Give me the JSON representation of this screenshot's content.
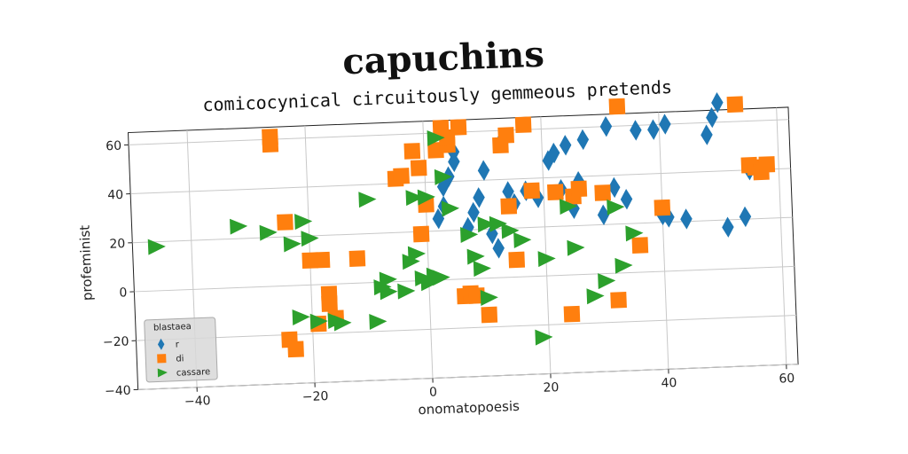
{
  "page": {
    "title": "capuchins"
  },
  "chart_data": {
    "type": "scatter",
    "title": "comicocynical circuitously gemmeous pretends",
    "xlabel": "onomatopoesis",
    "ylabel": "profeminist",
    "xlim": [
      -50,
      62
    ],
    "ylim": [
      -40,
      65
    ],
    "xticks": [
      -40,
      -20,
      0,
      20,
      40,
      60
    ],
    "yticks": [
      -40,
      -20,
      0,
      20,
      40,
      60
    ],
    "grid": true,
    "legend": {
      "title": "blastaea",
      "position": "lower-left"
    },
    "series": [
      {
        "name": "r",
        "marker": "diamond",
        "color": "#1f77b4",
        "points": [
          [
            2,
            25
          ],
          [
            3,
            30
          ],
          [
            3,
            38
          ],
          [
            4,
            42
          ],
          [
            5,
            48
          ],
          [
            5,
            52
          ],
          [
            7,
            21
          ],
          [
            8,
            27
          ],
          [
            9,
            33
          ],
          [
            10,
            44
          ],
          [
            11,
            18
          ],
          [
            12,
            12
          ],
          [
            13,
            55
          ],
          [
            14,
            35
          ],
          [
            15,
            30
          ],
          [
            17,
            35
          ],
          [
            19,
            32
          ],
          [
            21,
            47
          ],
          [
            22,
            50
          ],
          [
            23,
            35
          ],
          [
            24,
            53
          ],
          [
            25,
            27
          ],
          [
            26,
            38
          ],
          [
            27,
            55
          ],
          [
            30,
            24
          ],
          [
            31,
            60
          ],
          [
            32,
            35
          ],
          [
            34,
            30
          ],
          [
            36,
            58
          ],
          [
            39,
            58
          ],
          [
            40,
            23
          ],
          [
            41,
            22
          ],
          [
            41,
            60
          ],
          [
            44,
            21
          ],
          [
            48,
            55
          ],
          [
            49,
            62
          ],
          [
            50,
            68
          ],
          [
            51,
            17
          ],
          [
            54,
            21
          ],
          [
            55,
            40
          ]
        ]
      },
      {
        "name": "di",
        "marker": "square",
        "color": "#ff7f0e",
        "points": [
          [
            -26,
            61
          ],
          [
            -26,
            58
          ],
          [
            -24,
            26
          ],
          [
            -24,
            -22
          ],
          [
            -23,
            -26
          ],
          [
            -20,
            10
          ],
          [
            -19,
            -16
          ],
          [
            -18,
            10
          ],
          [
            -17,
            -4
          ],
          [
            -17,
            -8
          ],
          [
            -16,
            -14
          ],
          [
            -12,
            10
          ],
          [
            -5,
            42
          ],
          [
            -4,
            43
          ],
          [
            -2,
            53
          ],
          [
            -1,
            46
          ],
          [
            -1,
            19
          ],
          [
            0,
            31
          ],
          [
            2,
            53
          ],
          [
            3,
            62
          ],
          [
            4,
            55
          ],
          [
            4,
            58
          ],
          [
            6,
            62
          ],
          [
            6,
            -7
          ],
          [
            7,
            -6
          ],
          [
            8,
            -7
          ],
          [
            10,
            -15
          ],
          [
            13,
            54
          ],
          [
            14,
            58
          ],
          [
            14,
            29
          ],
          [
            15,
            7
          ],
          [
            17,
            62
          ],
          [
            18,
            35
          ],
          [
            22,
            34
          ],
          [
            24,
            -16
          ],
          [
            25,
            32
          ],
          [
            26,
            35
          ],
          [
            30,
            33
          ],
          [
            32,
            -11
          ],
          [
            33,
            68
          ],
          [
            36,
            11
          ],
          [
            40,
            26
          ],
          [
            53,
            67
          ],
          [
            55,
            42
          ],
          [
            56,
            41
          ],
          [
            57,
            39
          ],
          [
            58,
            42
          ]
        ]
      },
      {
        "name": "cassare",
        "marker": "triangle-right",
        "color": "#2ca02c",
        "points": [
          [
            -46,
            18
          ],
          [
            -32,
            25
          ],
          [
            -27,
            22
          ],
          [
            -23,
            17
          ],
          [
            -22,
            -13
          ],
          [
            -21,
            26
          ],
          [
            -20,
            19
          ],
          [
            -19,
            -15
          ],
          [
            -16,
            -15
          ],
          [
            -15,
            -16
          ],
          [
            -10,
            34
          ],
          [
            -9,
            -16
          ],
          [
            -8,
            -2
          ],
          [
            -7,
            -4
          ],
          [
            -7,
            1
          ],
          [
            -4,
            -4
          ],
          [
            -3,
            8
          ],
          [
            -2,
            34
          ],
          [
            -2,
            11
          ],
          [
            -1,
            1
          ],
          [
            0,
            34
          ],
          [
            0,
            -1
          ],
          [
            1,
            2
          ],
          [
            2,
            1
          ],
          [
            2,
            58
          ],
          [
            3,
            42
          ],
          [
            4,
            29
          ],
          [
            7,
            18
          ],
          [
            8,
            9
          ],
          [
            9,
            4
          ],
          [
            10,
            22
          ],
          [
            10,
            -8
          ],
          [
            12,
            22
          ],
          [
            14,
            19
          ],
          [
            16,
            15
          ],
          [
            19,
            -25
          ],
          [
            20,
            7
          ],
          [
            24,
            28
          ],
          [
            25,
            11
          ],
          [
            28,
            -9
          ],
          [
            30,
            -3
          ],
          [
            32,
            27
          ],
          [
            33,
            3
          ],
          [
            35,
            16
          ]
        ]
      }
    ]
  }
}
